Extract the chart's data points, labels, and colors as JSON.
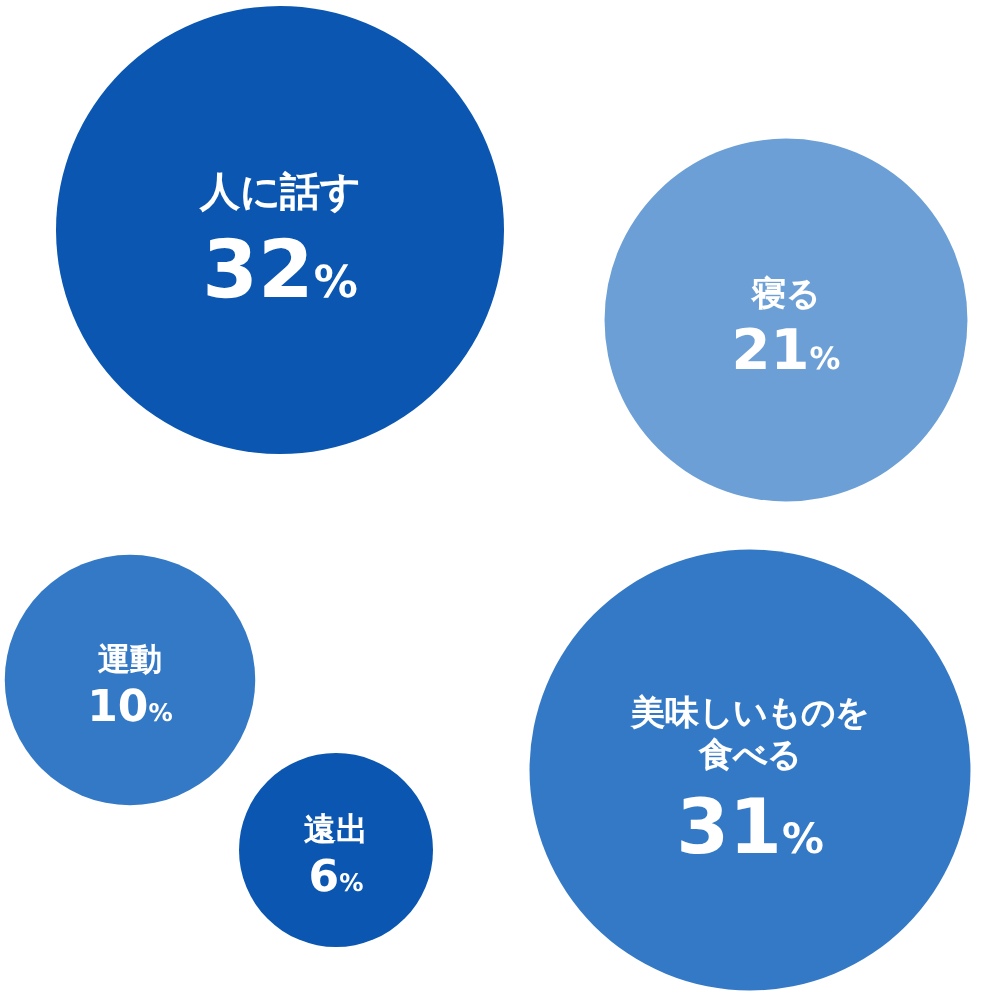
{
  "chart_data": {
    "type": "other",
    "categories": [
      "人に話す",
      "寝る",
      "運動",
      "美味しいものを食べる",
      "遠出"
    ],
    "values": [
      32,
      21,
      10,
      31,
      6
    ],
    "value_labels": [
      "32%",
      "21%",
      "10%",
      "31%",
      "6%"
    ],
    "colors": [
      "#0a56b0",
      "#6b9fd5",
      "#3479c5",
      "#3479c5",
      "#0a56b0"
    ]
  }
}
